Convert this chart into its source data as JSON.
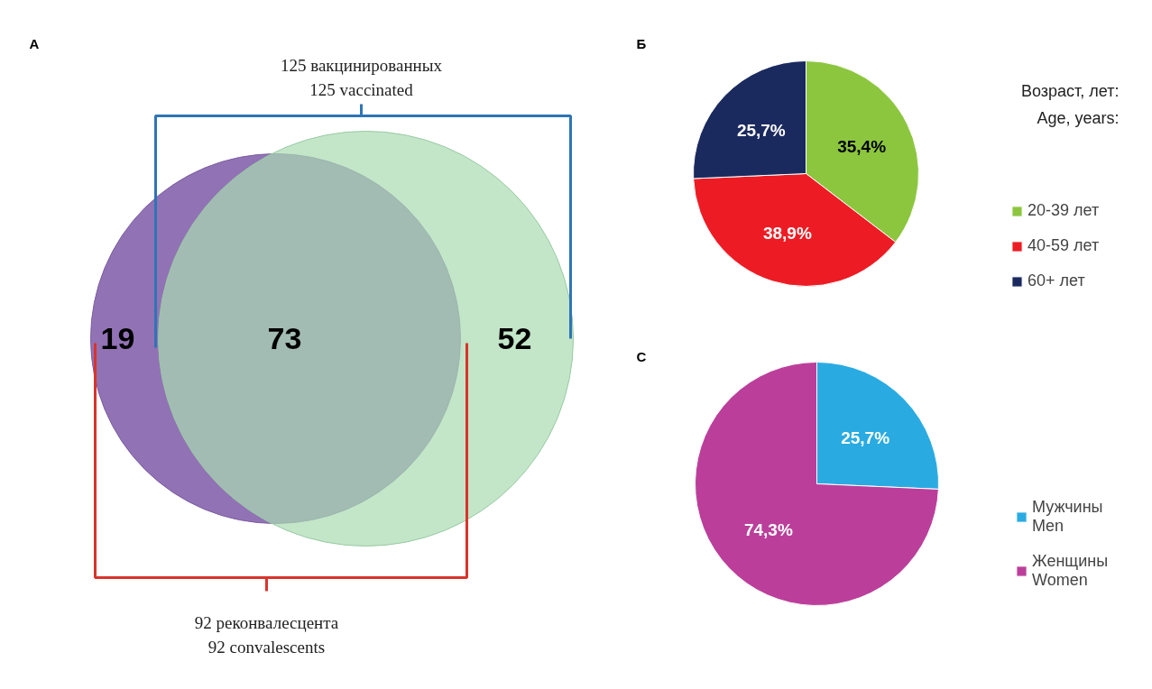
{
  "chart_data": [
    {
      "type": "other",
      "title": "А",
      "categories": [
        null,
        null,
        null
      ],
      "values": [
        19,
        73,
        52
      ],
      "colors": [
        "#8b6bb1",
        "#6fb8b2",
        "#a9dbb2"
      ],
      "data_labels": true,
      "annotations": [
        "125 вакцинированных",
        "125 vaccinated",
        "92 реконвалесцента",
        "92 convalescents"
      ]
    },
    {
      "type": "pie",
      "title": "Б",
      "legend_title": "Возраст, лет:\nAge, years:",
      "categories": [
        "20-39 лет",
        "40-59 лет",
        "60+ лет"
      ],
      "values": [
        35.4,
        38.9,
        25.7
      ],
      "colors": [
        "#8cc63f",
        "#ed1c24",
        "#1b2a5e"
      ],
      "value_labels": [
        "35,4%",
        "38,9%",
        "25,7%"
      ],
      "legend": "right"
    },
    {
      "type": "pie",
      "title": "С",
      "categories": [
        "Мужчины\nMen",
        "Женщины\nWomen"
      ],
      "values": [
        25.7,
        74.3
      ],
      "colors": [
        "#29abe2",
        "#bb3f9a"
      ],
      "value_labels": [
        "25,7%",
        "74,3%"
      ],
      "legend": "right"
    }
  ]
}
